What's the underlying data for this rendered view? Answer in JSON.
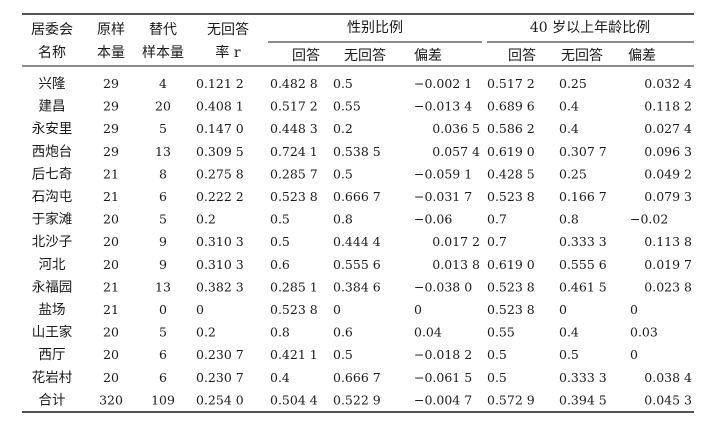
{
  "table": {
    "group_headers": [
      "性别比例",
      "40 岁以上年龄比例"
    ],
    "columns_line1": [
      "居委会",
      "原样",
      "替代",
      "无回答"
    ],
    "columns_line2": [
      "名称",
      "本量",
      "样本量",
      "率 r"
    ],
    "sub_columns": [
      "回答",
      "无回答",
      "偏差",
      "回答",
      "无回答",
      "偏差"
    ],
    "rows": [
      [
        "兴隆",
        "29",
        "4",
        "0.121 2",
        "0.482 8",
        "0.5",
        "−0.002 1",
        "0.517 2",
        "0.25",
        "0.032 4"
      ],
      [
        "建昌",
        "29",
        "20",
        "0.408 1",
        "0.517 2",
        "0.55",
        "−0.013 4",
        "0.689 6",
        "0.4",
        "0.118 2"
      ],
      [
        "永安里",
        "29",
        "5",
        "0.147 0",
        "0.448 3",
        "0.2",
        "0.036 5",
        "0.586 2",
        "0.4",
        "0.027 4"
      ],
      [
        "西炮台",
        "29",
        "13",
        "0.309 5",
        "0.724 1",
        "0.538 5",
        "0.057 4",
        "0.619 0",
        "0.307 7",
        "0.096 3"
      ],
      [
        "后七奇",
        "21",
        "8",
        "0.275 8",
        "0.285 7",
        "0.5",
        "−0.059 1",
        "0.428 5",
        "0.25",
        "0.049 2"
      ],
      [
        "石沟屯",
        "21",
        "6",
        "0.222 2",
        "0.523 8",
        "0.666 7",
        "−0.031 7",
        "0.523 8",
        "0.166 7",
        "0.079 3"
      ],
      [
        "于家滩",
        "20",
        "5",
        "0.2",
        "0.5",
        "0.8",
        "−0.06",
        "0.7",
        "0.8",
        "−0.02"
      ],
      [
        "北沙子",
        "20",
        "9",
        "0.310 3",
        "0.5",
        "0.444 4",
        "0.017 2",
        "0.7",
        "0.333 3",
        "0.113 8"
      ],
      [
        "河北",
        "20",
        "9",
        "0.310 3",
        "0.6",
        "0.555 6",
        "0.013 8",
        "0.619 0",
        "0.555 6",
        "0.019 7"
      ],
      [
        "永福园",
        "21",
        "13",
        "0.382 3",
        "0.285 1",
        "0.384 6",
        "−0.038 0",
        "0.523 8",
        "0.461 5",
        "0.023 8"
      ],
      [
        "盐场",
        "21",
        "0",
        "0",
        "0.523 8",
        "0",
        "0",
        "0.523 8",
        "0",
        "0"
      ],
      [
        "山王家",
        "20",
        "5",
        "0.2",
        "0.8",
        "0.6",
        "0.04",
        "0.55",
        "0.4",
        "0.03"
      ],
      [
        "西厅",
        "20",
        "6",
        "0.230 7",
        "0.421 1",
        "0.5",
        "−0.018 2",
        "0.5",
        "0.5",
        "0"
      ],
      [
        "花岩村",
        "20",
        "6",
        "0.230 7",
        "0.4",
        "0.666 7",
        "−0.061 5",
        "0.5",
        "0.333 3",
        "0.038 4"
      ],
      [
        "合计",
        "320",
        "109",
        "0.254 0",
        "0.504 4",
        "0.522 9",
        "−0.004 7",
        "0.572 9",
        "0.394 5",
        "0.045 3"
      ]
    ]
  }
}
